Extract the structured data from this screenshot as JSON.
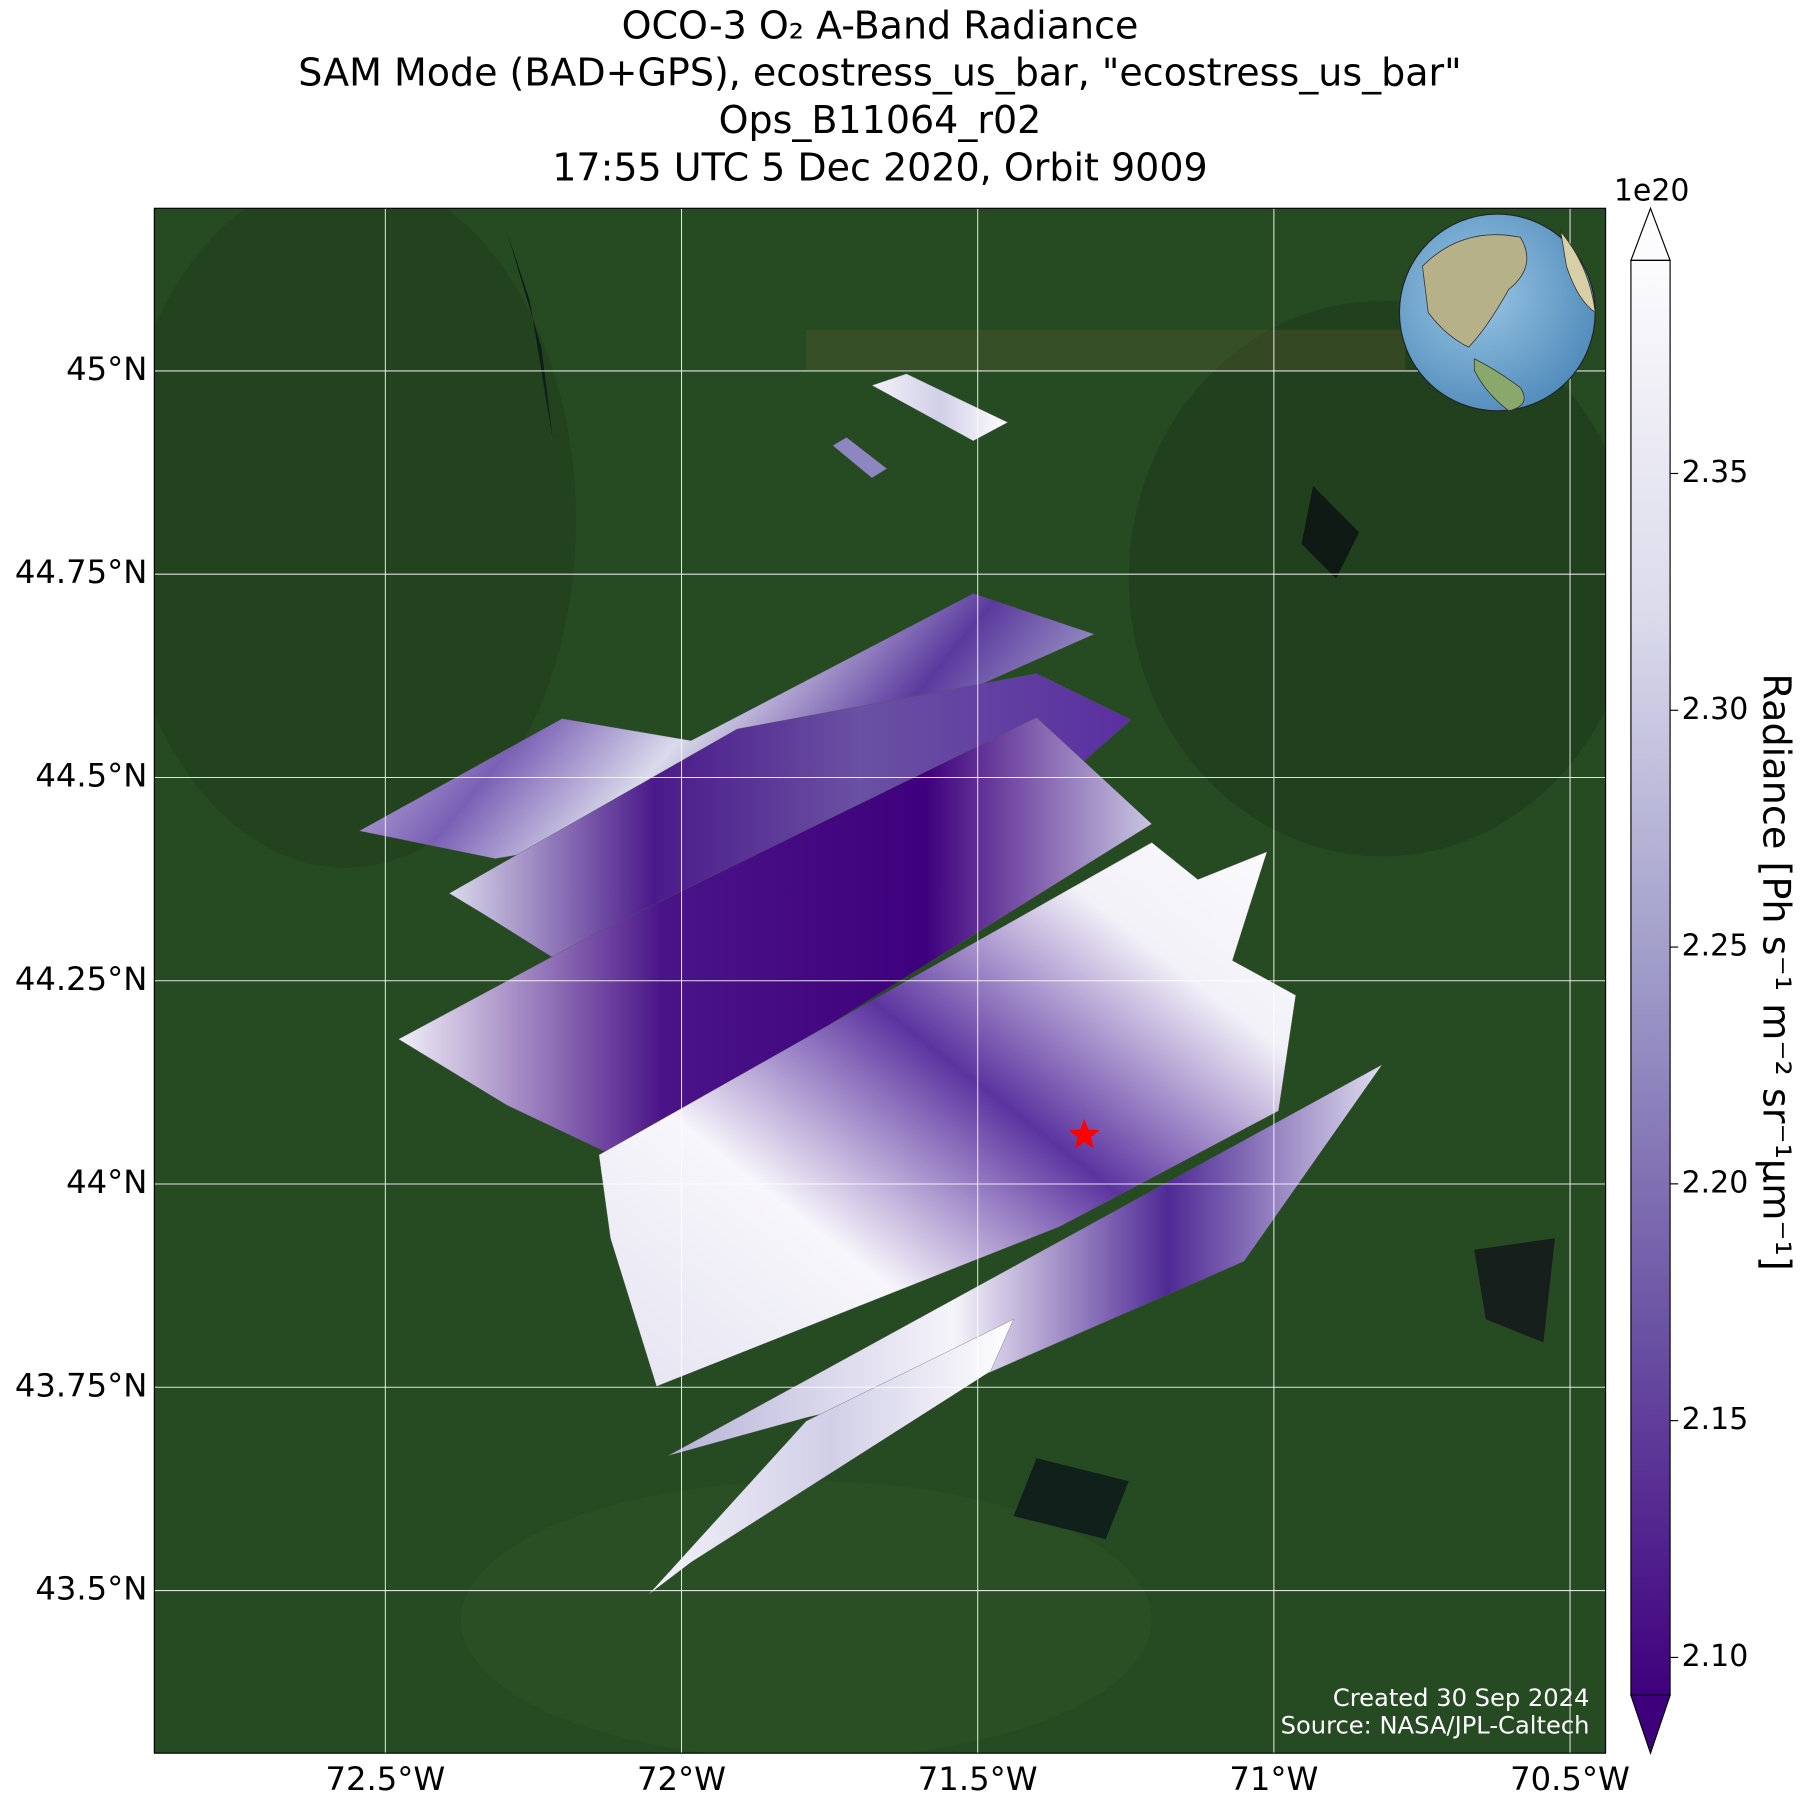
{
  "chart_data": {
    "type": "map",
    "title": [
      "OCO-3 O₂ A-Band Radiance",
      "SAM Mode (BAD+GPS), ecostress_us_bar, \"ecostress_us_bar\"",
      "Ops_B11064_r02",
      "17:55 UTC 5 Dec 2020, Orbit 9009"
    ],
    "xlim": [
      -72.89,
      -70.44
    ],
    "ylim": [
      43.3,
      45.2
    ],
    "xticks": [
      {
        "value": -72.5,
        "label": "72.5°W"
      },
      {
        "value": -72,
        "label": "72°W"
      },
      {
        "value": -71.5,
        "label": "71.5°W"
      },
      {
        "value": -71,
        "label": "71°W"
      },
      {
        "value": -70.5,
        "label": "70.5°W"
      }
    ],
    "yticks": [
      {
        "value": 43.5,
        "label": "43.5°N"
      },
      {
        "value": 43.75,
        "label": "43.75°N"
      },
      {
        "value": 44,
        "label": "44°N"
      },
      {
        "value": 44.25,
        "label": "44.25°N"
      },
      {
        "value": 44.5,
        "label": "44.5°N"
      },
      {
        "value": 44.75,
        "label": "44.75°N"
      },
      {
        "value": 45,
        "label": "45°N"
      }
    ],
    "grid": true,
    "marker": {
      "lon": -71.32,
      "lat": 44.06,
      "color": "#ff0000"
    },
    "colorbar": {
      "label": "Radiance [Ph s⁻¹ m⁻² sr⁻¹μm⁻¹]",
      "multiplier": "1e20",
      "lim": [
        2.092,
        2.395
      ],
      "ticks": [
        {
          "value": 2.1,
          "label": "2.10"
        },
        2.15,
        {
          "value": 2.2,
          "label": "2.20"
        },
        2.25,
        {
          "value": 2.3,
          "label": "2.30"
        },
        2.35
      ],
      "colors": [
        "#3f007d",
        "#6a51a3",
        "#9e9ac8",
        "#dadaeb",
        "#fcfbfd"
      ]
    },
    "annotations": [
      "Created 30 Sep 2024",
      "Source: NASA/JPL-Caltech"
    ]
  }
}
